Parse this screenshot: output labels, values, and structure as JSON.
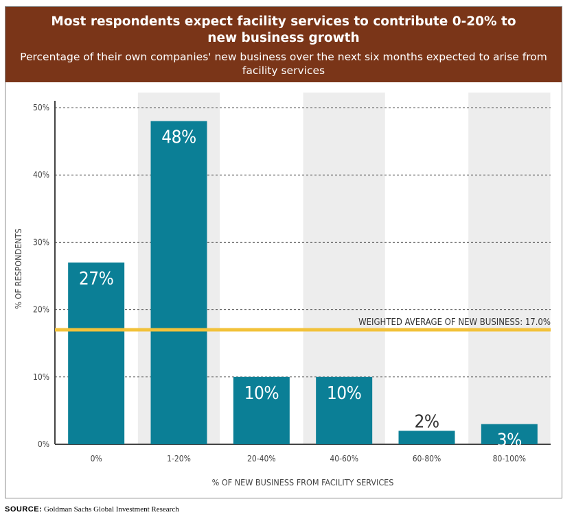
{
  "header": {
    "title": "Most respondents expect facility services to contribute 0-20% to new business growth",
    "subtitle": "Percentage of their own companies' new business over the next six months expected to arise from facility services"
  },
  "source": {
    "label": "SOURCE:",
    "text": "Goldman Sachs Global Investment Research"
  },
  "colors": {
    "header_bg": "#7a3518",
    "bar": "#0b7f96",
    "band": "#ededed",
    "average_line": "#f2c23a"
  },
  "chart_data": {
    "type": "bar",
    "title": "Most respondents expect facility services to contribute 0-20% to new business growth",
    "subtitle": "Percentage of their own companies' new business over the next six months expected to arise from facility services",
    "xlabel": "% OF NEW BUSINESS FROM FACILITY SERVICES",
    "ylabel": "% OF RESPONDENTS",
    "categories": [
      "0%",
      "1-20%",
      "20-40%",
      "40-60%",
      "60-80%",
      "80-100%"
    ],
    "values": [
      27,
      48,
      10,
      10,
      2,
      3
    ],
    "value_labels": [
      "27%",
      "48%",
      "10%",
      "10%",
      "2%",
      "3%"
    ],
    "ylim": [
      0,
      50
    ],
    "yticks": [
      0,
      10,
      20,
      30,
      40,
      50
    ],
    "ytick_labels": [
      "0%",
      "10%",
      "20%",
      "30%",
      "40%",
      "50%"
    ],
    "grid": true,
    "reference_line": {
      "value": 17.0,
      "label": "WEIGHTED AVERAGE OF NEW BUSINESS: 17.0%"
    }
  }
}
